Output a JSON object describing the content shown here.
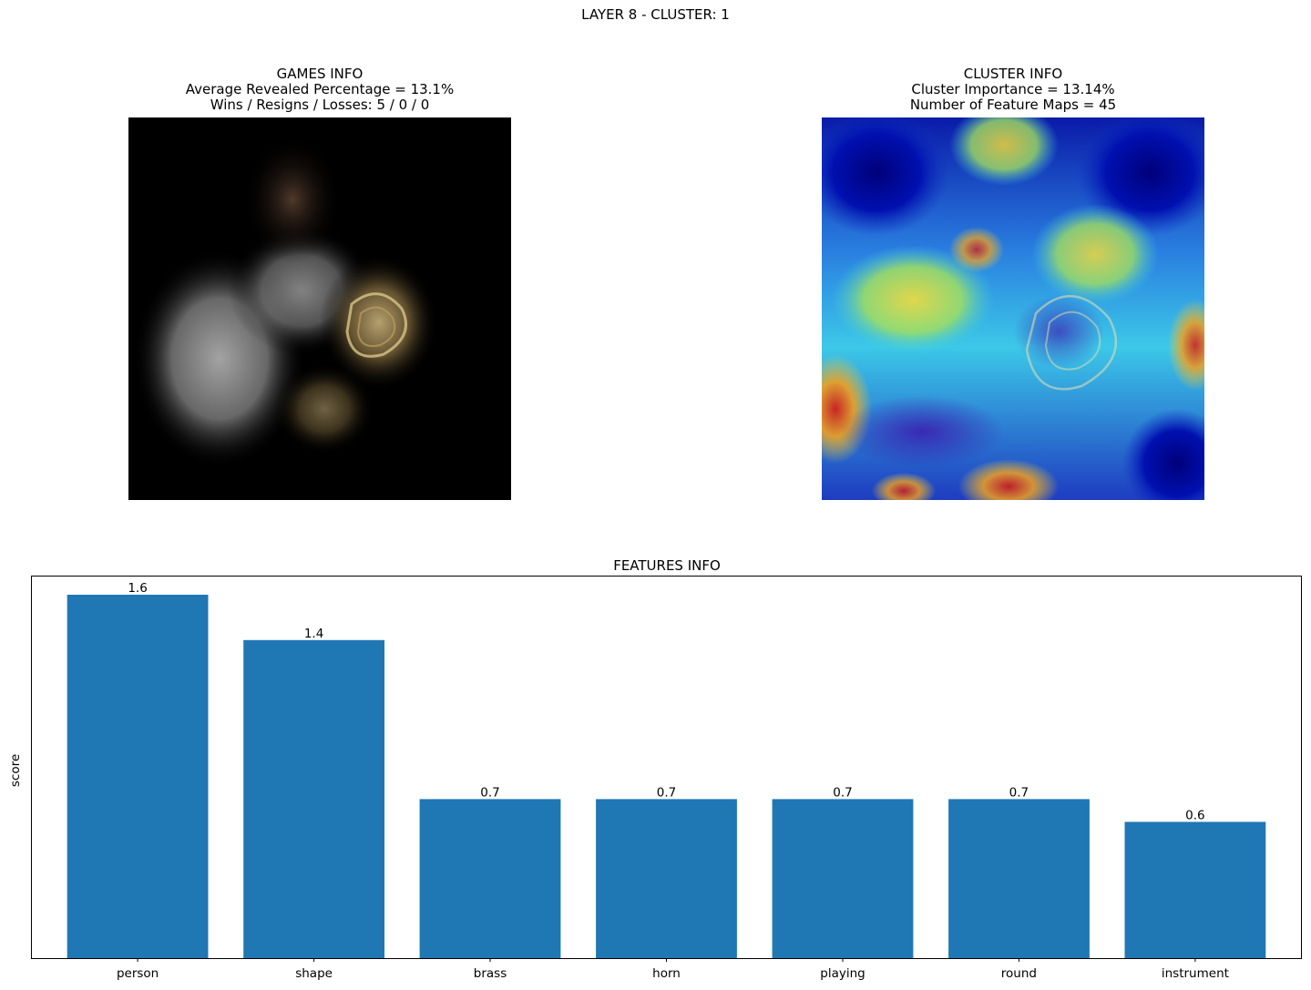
{
  "figure": {
    "suptitle": "LAYER 8 - CLUSTER: 1"
  },
  "games_info": {
    "title": "GAMES INFO",
    "line1": "Average Revealed Percentage = 13.1%",
    "line2": "Wins / Resigns / Losses: 5 / 0 / 0"
  },
  "cluster_info": {
    "title": "CLUSTER INFO",
    "line1": "Cluster Importance = 13.14%",
    "line2": "Number of Feature Maps = 45"
  },
  "colors": {
    "bar": "#1f77b4",
    "axis": "#000000",
    "revealed_bg": "#000000",
    "heatmap_low": "#00008b",
    "heatmap_mid": "#00c8ff",
    "heatmap_high": "#e02010"
  },
  "chart_data": {
    "type": "bar",
    "title": "FEATURES INFO",
    "xlabel": "",
    "ylabel": "score",
    "categories": [
      "person",
      "shape",
      "brass",
      "horn",
      "playing",
      "round",
      "instrument"
    ],
    "values": [
      1.6,
      1.4,
      0.7,
      0.7,
      0.7,
      0.7,
      0.6
    ],
    "value_labels": [
      "1.6",
      "1.4",
      "0.7",
      "0.7",
      "0.7",
      "0.7",
      "0.6"
    ],
    "ylim": [
      0,
      1.68
    ],
    "y_ticks_visible": false,
    "grid": false,
    "legend": "none"
  }
}
